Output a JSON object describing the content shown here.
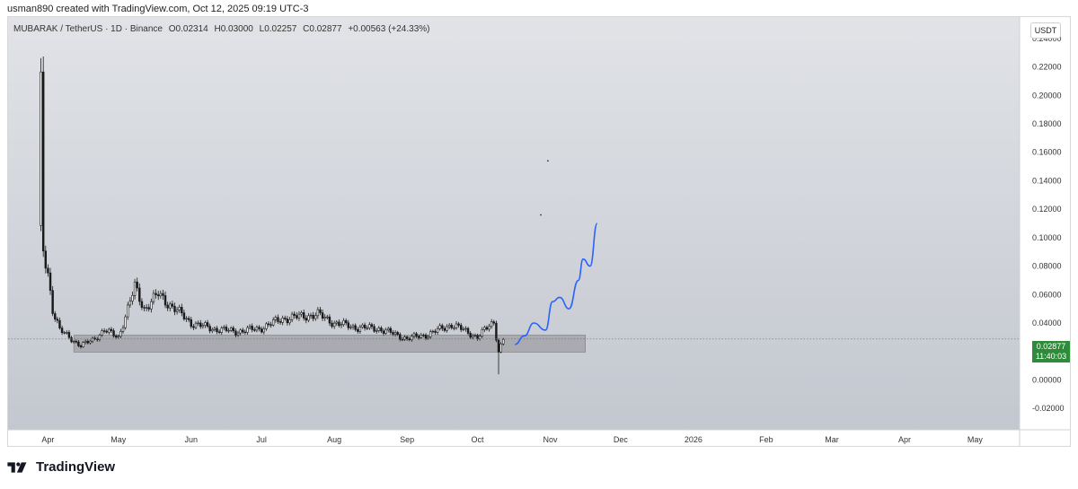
{
  "credit": "usman890 created with TradingView.com, Oct 12, 2025 09:19 UTC-3",
  "legend": {
    "symbol": "MUBARAK / TetherUS · 1D · Binance",
    "open": "O0.02314",
    "high": "H0.03000",
    "low": "L0.02257",
    "close": "C0.02877",
    "change": "+0.00563 (+24.33%)"
  },
  "unit_button": "USDT",
  "price_tag": {
    "price": "0.02877",
    "countdown": "11:40:03"
  },
  "footer_brand": "TradingView",
  "colors": {
    "bg_top": "#e1e3e7",
    "bg_bottom": "#c3c7cf",
    "candle": "#1a1a1a",
    "zone": "#8e8f93",
    "projection": "#2962ff",
    "price_tag": "#2e8b3a"
  },
  "chart_data": {
    "type": "candlestick",
    "ylim": [
      -0.03,
      0.25
    ],
    "y_ticks": [
      "0.24000",
      "0.22000",
      "0.20000",
      "0.18000",
      "0.16000",
      "0.14000",
      "0.12000",
      "0.10000",
      "0.08000",
      "0.06000",
      "0.04000",
      "0.00000",
      "-0.02000"
    ],
    "x_labels": [
      "Apr",
      "May",
      "Jun",
      "Jul",
      "Aug",
      "Sep",
      "Oct",
      "Nov",
      "Dec",
      "2026",
      "Feb",
      "Mar",
      "Apr",
      "May"
    ],
    "x_range": [
      "2025-03-15",
      "2026-05-20"
    ],
    "last_price": 0.02877,
    "support_zone": {
      "start": "2025-04-12",
      "end": "2025-11-16",
      "low": 0.0195,
      "high": 0.0315
    },
    "price_path": [
      [
        "2025-03-28",
        0.105
      ],
      [
        "2025-03-29",
        0.2
      ],
      [
        "2025-03-30",
        0.09
      ],
      [
        "2025-04-01",
        0.075
      ],
      [
        "2025-04-03",
        0.05
      ],
      [
        "2025-04-06",
        0.035
      ],
      [
        "2025-04-10",
        0.03
      ],
      [
        "2025-04-15",
        0.024
      ],
      [
        "2025-04-20",
        0.028
      ],
      [
        "2025-04-25",
        0.035
      ],
      [
        "2025-05-01",
        0.03
      ],
      [
        "2025-05-04",
        0.045
      ],
      [
        "2025-05-08",
        0.065
      ],
      [
        "2025-05-12",
        0.05
      ],
      [
        "2025-05-18",
        0.06
      ],
      [
        "2025-05-25",
        0.05
      ],
      [
        "2025-06-01",
        0.04
      ],
      [
        "2025-06-10",
        0.036
      ],
      [
        "2025-06-20",
        0.034
      ],
      [
        "2025-06-30",
        0.036
      ],
      [
        "2025-07-10",
        0.043
      ],
      [
        "2025-07-25",
        0.046
      ],
      [
        "2025-08-01",
        0.04
      ],
      [
        "2025-08-10",
        0.037
      ],
      [
        "2025-08-20",
        0.036
      ],
      [
        "2025-09-01",
        0.029
      ],
      [
        "2025-09-10",
        0.032
      ],
      [
        "2025-09-20",
        0.039
      ],
      [
        "2025-09-25",
        0.035
      ],
      [
        "2025-10-01",
        0.03
      ],
      [
        "2025-10-08",
        0.041
      ],
      [
        "2025-10-10",
        0.02
      ],
      [
        "2025-10-12",
        0.02877
      ]
    ],
    "wick_low": {
      "date": "2025-10-10",
      "value": 0.004
    },
    "projection": [
      [
        "2025-10-17",
        0.025
      ],
      [
        "2025-10-21",
        0.031
      ],
      [
        "2025-10-25",
        0.04
      ],
      [
        "2025-10-30",
        0.035
      ],
      [
        "2025-11-02",
        0.055
      ],
      [
        "2025-11-05",
        0.058
      ],
      [
        "2025-11-09",
        0.05
      ],
      [
        "2025-11-13",
        0.07
      ],
      [
        "2025-11-15",
        0.085
      ],
      [
        "2025-11-18",
        0.08
      ],
      [
        "2025-11-21",
        0.11
      ]
    ],
    "stray_marks": [
      [
        "2025-10-31",
        0.154
      ],
      [
        "2025-10-28",
        0.116
      ]
    ]
  }
}
